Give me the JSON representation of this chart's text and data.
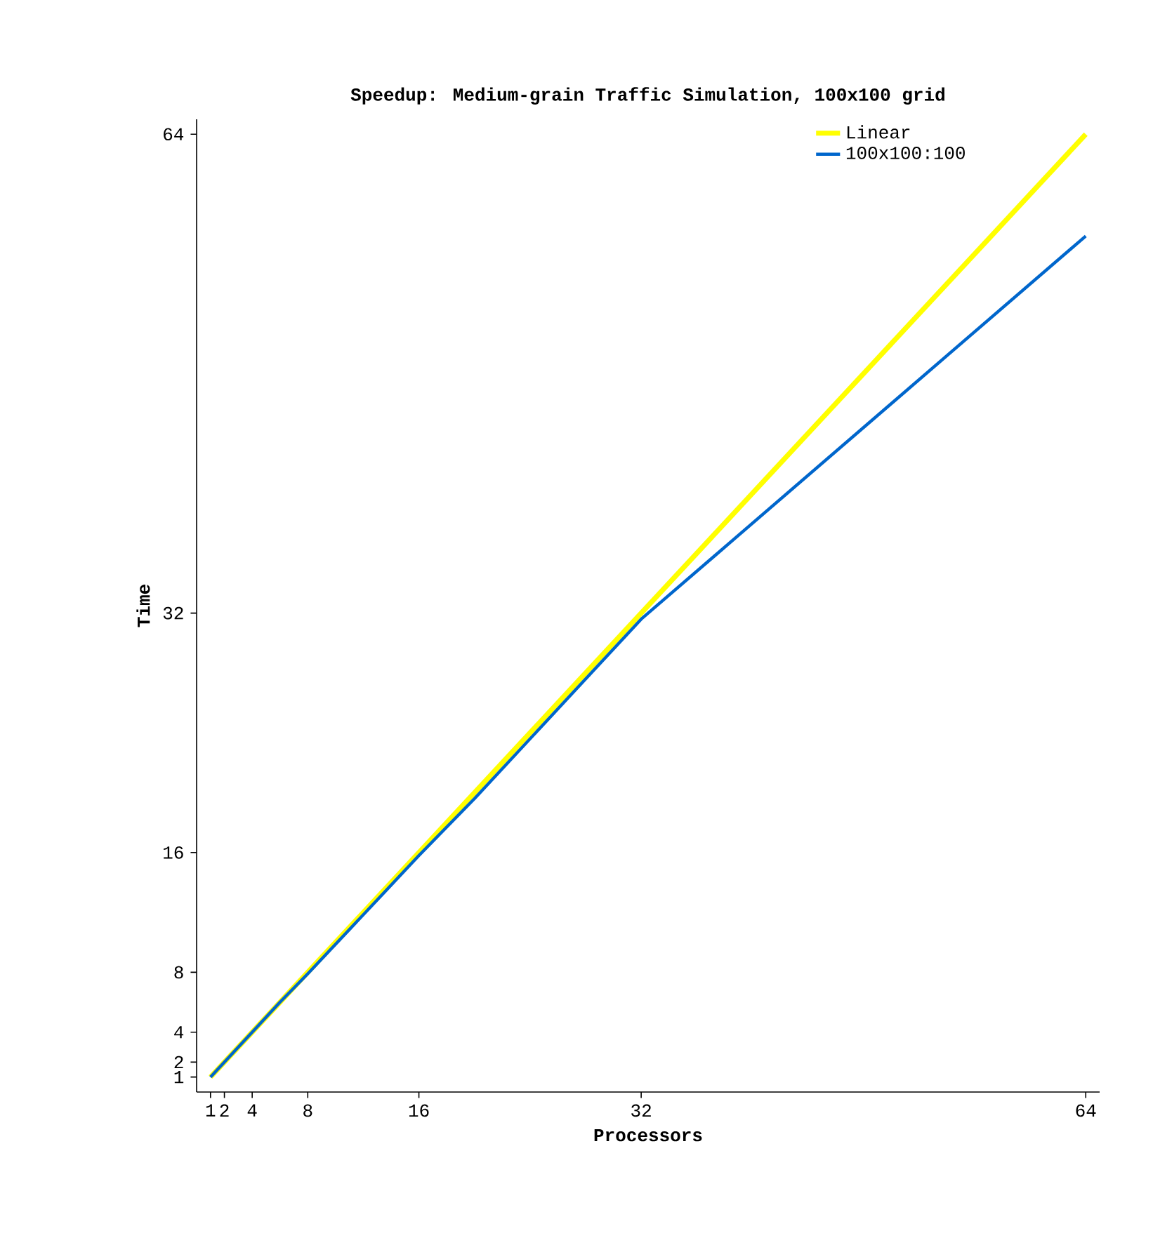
{
  "chart_data": {
    "type": "line",
    "title": "Speedup: Medium-grain Traffic Simulation, 100x100 grid",
    "xlabel": "Processors",
    "ylabel": "Time",
    "series": [
      {
        "name": "Linear",
        "color": "#ffff00",
        "x": [
          1,
          64
        ],
        "values": [
          1,
          64
        ]
      },
      {
        "name": "100x100:100",
        "color": "#0066cc",
        "x": [
          1,
          2,
          4,
          6,
          8,
          16,
          20,
          27,
          32,
          64
        ],
        "values": [
          1,
          2,
          4,
          6,
          7.9,
          15.8,
          19.6,
          26.6,
          31.6,
          57.2
        ]
      }
    ],
    "xlim": [
      0,
      65
    ],
    "ylim": [
      0,
      65
    ],
    "xticks": [
      1,
      2,
      4,
      8,
      16,
      32,
      64
    ],
    "yticks": [
      1,
      2,
      4,
      8,
      16,
      32,
      64
    ],
    "legend": "top right",
    "grid": false,
    "marker": "none",
    "line_style": "solid"
  }
}
